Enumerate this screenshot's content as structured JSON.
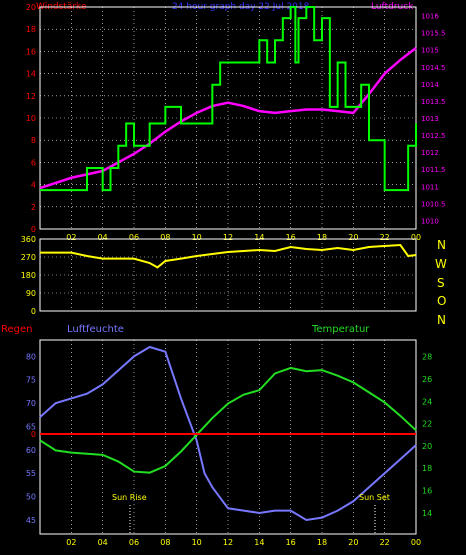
{
  "header": {
    "left_label": "Windstärke",
    "title": "24 hour graph day  22 Jul 2018",
    "right_label": "Luftdruck"
  },
  "wind_dir_letters": [
    "N",
    "W",
    "S",
    "O",
    "N"
  ],
  "lower_header": {
    "rain_label": "Regen",
    "humidity_label": "Luftfeuchte",
    "temperature_label": "Temperatur"
  },
  "annotations": {
    "sun_rise": "Sun Rise",
    "sun_set": "Sun Set"
  },
  "colors": {
    "wind": "#00ff00",
    "pressure": "#ff00ff",
    "direction": "#ffff00",
    "humidity": "#7777ff",
    "temperature": "#22dd22",
    "rain": "#ff0000",
    "axis_left": "#ff0000",
    "axis_right": "#ff00ff",
    "title": "#3333ff"
  },
  "x_ticks": [
    "02",
    "04",
    "06",
    "08",
    "10",
    "12",
    "14",
    "16",
    "18",
    "20",
    "22",
    "00"
  ],
  "chart_data": [
    {
      "type": "line",
      "title": "24 hour graph day  22 Jul 2018",
      "xlabel": "",
      "ylabel": "Windstärke",
      "y2label": "Luftdruck",
      "xlim": [
        0,
        24
      ],
      "ylim": [
        0,
        20
      ],
      "y2lim": [
        1009.75,
        1016.25
      ],
      "yticks": [
        0,
        2,
        4,
        6,
        8,
        10,
        12,
        14,
        16,
        18,
        20
      ],
      "y2ticks": [
        1010,
        1010.5,
        1011,
        1011.5,
        1012,
        1012.5,
        1013,
        1013.5,
        1014,
        1014.5,
        1015,
        1015.5,
        1016
      ],
      "y2tick_labels": [
        "1010",
        "1010.5",
        "1011",
        "1011.5",
        "1012",
        "1012.5",
        "1013",
        "1013.5",
        "1014",
        "1014.5",
        "1015",
        "1015.5",
        "1016"
      ],
      "series": [
        {
          "axis": "left",
          "step": true,
          "x": [
            0,
            2,
            3,
            4,
            4.5,
            5,
            5.5,
            6,
            7,
            8,
            9,
            11,
            11.5,
            12,
            14,
            14.5,
            15,
            15.5,
            16,
            16.3,
            16.5,
            17,
            17.5,
            18,
            18.5,
            19,
            19.5,
            20,
            20.5,
            21,
            22,
            23.5,
            24
          ],
          "values": [
            3.5,
            3.5,
            5.5,
            3.5,
            5.5,
            7.5,
            9.5,
            7.5,
            9.5,
            11,
            9.5,
            13,
            15,
            15,
            17,
            15,
            17,
            19,
            21,
            15,
            19,
            21,
            17,
            19,
            11,
            15,
            11,
            11,
            13,
            8,
            3.5,
            7.5,
            9.5
          ]
        },
        {
          "axis": "right",
          "x": [
            0,
            1,
            2,
            3,
            4,
            5,
            6,
            7,
            8,
            9,
            10,
            11,
            12,
            13,
            14,
            15,
            16,
            17,
            18,
            19,
            20,
            21,
            22,
            23,
            24
          ],
          "values": [
            1010.95,
            1011.1,
            1011.25,
            1011.35,
            1011.45,
            1011.7,
            1011.95,
            1012.25,
            1012.6,
            1012.9,
            1013.15,
            1013.35,
            1013.45,
            1013.35,
            1013.2,
            1013.15,
            1013.2,
            1013.25,
            1013.25,
            1013.2,
            1013.15,
            1013.7,
            1014.3,
            1014.7,
            1015.05
          ]
        }
      ]
    },
    {
      "type": "line",
      "xlim": [
        0,
        24
      ],
      "ylim": [
        0,
        360
      ],
      "yticks": [
        0,
        90,
        180,
        270,
        360
      ],
      "series": [
        {
          "x": [
            0,
            1,
            2,
            3,
            4,
            5,
            6,
            7,
            7.5,
            8,
            9,
            10,
            11,
            12,
            13,
            14,
            15,
            16,
            17,
            18,
            19,
            20,
            21,
            22,
            23,
            23.5,
            24
          ],
          "values": [
            292,
            292,
            292,
            275,
            262,
            262,
            262,
            240,
            218,
            250,
            262,
            275,
            285,
            295,
            300,
            305,
            300,
            320,
            310,
            305,
            315,
            305,
            320,
            325,
            330,
            275,
            280
          ]
        }
      ]
    },
    {
      "type": "line",
      "xlim": [
        0,
        24
      ],
      "ylabel": "Luftfeuchte",
      "y2label": "Temperatur",
      "ylim": [
        42,
        83.5
      ],
      "y2lim": [
        12.1,
        29.5
      ],
      "yticks": [
        45,
        50,
        55,
        60,
        65,
        70,
        75,
        80
      ],
      "y2ticks": [
        14,
        16,
        18,
        20,
        22,
        24,
        26,
        28
      ],
      "series": [
        {
          "axis": "left",
          "x": [
            0,
            1,
            2,
            3,
            4,
            5,
            6,
            7,
            8,
            8.5,
            9,
            10,
            10.5,
            11,
            12,
            13,
            14,
            15,
            16,
            17,
            18,
            19,
            20,
            21,
            22,
            23,
            24
          ],
          "values": [
            67,
            70,
            71,
            72,
            74,
            77,
            80,
            82,
            81,
            76,
            71,
            62,
            55,
            52,
            47.5,
            47,
            46.5,
            47,
            47,
            45,
            45.5,
            47,
            49,
            52,
            55,
            58,
            61
          ]
        },
        {
          "axis": "right",
          "x": [
            0,
            1,
            2,
            3,
            4,
            5,
            6,
            7,
            8,
            9,
            10,
            11,
            12,
            13,
            14,
            15,
            16,
            17,
            18,
            19,
            20,
            21,
            22,
            23,
            24
          ],
          "values": [
            20.5,
            19.6,
            19.4,
            19.3,
            19.2,
            18.6,
            17.7,
            17.6,
            18.2,
            19.5,
            21,
            22.5,
            23.8,
            24.6,
            25,
            26.5,
            27,
            26.7,
            26.8,
            26.3,
            25.7,
            24.8,
            23.9,
            22.7,
            21.4
          ]
        },
        {
          "axis": "rain",
          "x": [
            0,
            24
          ],
          "values": [
            0,
            0
          ]
        }
      ]
    }
  ]
}
